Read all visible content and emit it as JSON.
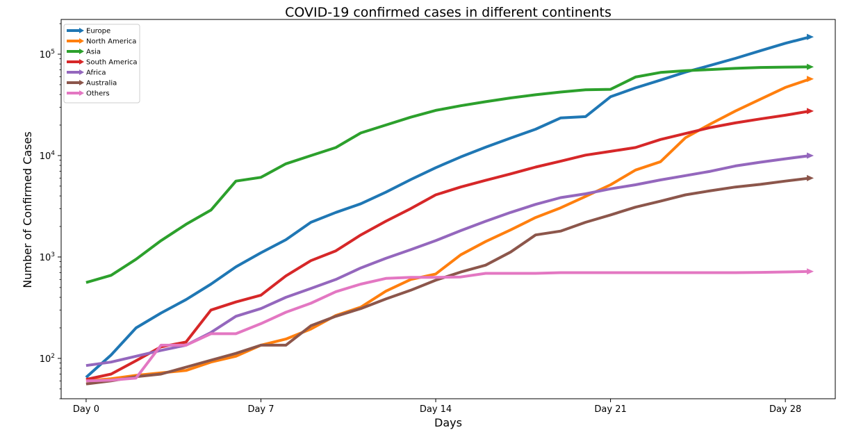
{
  "chart_data": {
    "type": "line",
    "title": "COVID-19 confirmed cases in different  continents",
    "xlabel": "Days",
    "ylabel": "Number of Confirmed Cases",
    "yscale": "log",
    "xlim": [
      -1,
      30
    ],
    "ylim": [
      40,
      220000
    ],
    "x": [
      0,
      1,
      2,
      3,
      4,
      5,
      6,
      7,
      8,
      9,
      10,
      11,
      12,
      13,
      14,
      15,
      16,
      17,
      18,
      19,
      20,
      21,
      22,
      23,
      24,
      25,
      26,
      27,
      28,
      29
    ],
    "x_ticks": [
      0,
      7,
      14,
      21,
      28
    ],
    "x_tick_labels": [
      "Day 0",
      "Day 7",
      "Day 14",
      "Day 21",
      "Day 28"
    ],
    "y_ticks": [
      100,
      1000,
      10000,
      100000
    ],
    "y_tick_labels": [
      {
        "base": "10",
        "exp": "2"
      },
      {
        "base": "10",
        "exp": "3"
      },
      {
        "base": "10",
        "exp": "4"
      },
      {
        "base": "10",
        "exp": "5"
      }
    ],
    "grid": false,
    "legend_position": "upper left",
    "series": [
      {
        "name": "Europe",
        "color": "#1f77b4",
        "values": [
          65,
          108,
          200,
          280,
          380,
          540,
          800,
          1100,
          1480,
          2200,
          2750,
          3350,
          4350,
          5800,
          7600,
          9700,
          12100,
          14900,
          18200,
          23500,
          24200,
          38000,
          46500,
          55500,
          66500,
          77500,
          91000,
          108000,
          128000,
          148000
        ]
      },
      {
        "name": "North America",
        "color": "#ff7f0e",
        "values": [
          60,
          63,
          68,
          72,
          76,
          92,
          105,
          135,
          155,
          195,
          265,
          320,
          460,
          600,
          680,
          1050,
          1420,
          1850,
          2450,
          3050,
          3950,
          5150,
          7200,
          8700,
          15000,
          20500,
          27500,
          36000,
          47000,
          57000
        ]
      },
      {
        "name": "Asia",
        "color": "#2ca02c",
        "values": [
          560,
          660,
          950,
          1450,
          2100,
          2900,
          5600,
          6100,
          8300,
          10000,
          12000,
          16700,
          20000,
          23900,
          27900,
          31000,
          34000,
          37000,
          39800,
          42300,
          44500,
          45000,
          59500,
          66000,
          68800,
          70500,
          72500,
          74000,
          74500,
          75000
        ]
      },
      {
        "name": "South America",
        "color": "#d62728",
        "values": [
          62,
          70,
          95,
          130,
          145,
          300,
          360,
          420,
          650,
          920,
          1150,
          1650,
          2250,
          3000,
          4100,
          4900,
          5700,
          6600,
          7700,
          8800,
          10100,
          11000,
          12000,
          14400,
          16500,
          18900,
          21000,
          23000,
          25000,
          27500
        ]
      },
      {
        "name": "Africa",
        "color": "#9467bd",
        "values": [
          85,
          92,
          105,
          120,
          135,
          180,
          260,
          310,
          400,
          490,
          600,
          780,
          970,
          1180,
          1450,
          1820,
          2250,
          2750,
          3300,
          3850,
          4200,
          4700,
          5150,
          5750,
          6350,
          7000,
          7900,
          8600,
          9300,
          10000
        ]
      },
      {
        "name": "Australia",
        "color": "#8c564b",
        "values": [
          56,
          60,
          66,
          70,
          82,
          96,
          112,
          135,
          135,
          210,
          260,
          310,
          385,
          470,
          590,
          710,
          830,
          1120,
          1650,
          1800,
          2200,
          2600,
          3100,
          3550,
          4100,
          4500,
          4900,
          5200,
          5600,
          6000
        ]
      },
      {
        "name": "Others",
        "color": "#e377c2",
        "values": [
          60,
          61,
          64,
          135,
          135,
          175,
          175,
          220,
          285,
          350,
          455,
          540,
          615,
          630,
          630,
          635,
          690,
          690,
          690,
          700,
          700,
          700,
          700,
          700,
          700,
          700,
          700,
          705,
          712,
          720
        ]
      }
    ]
  }
}
